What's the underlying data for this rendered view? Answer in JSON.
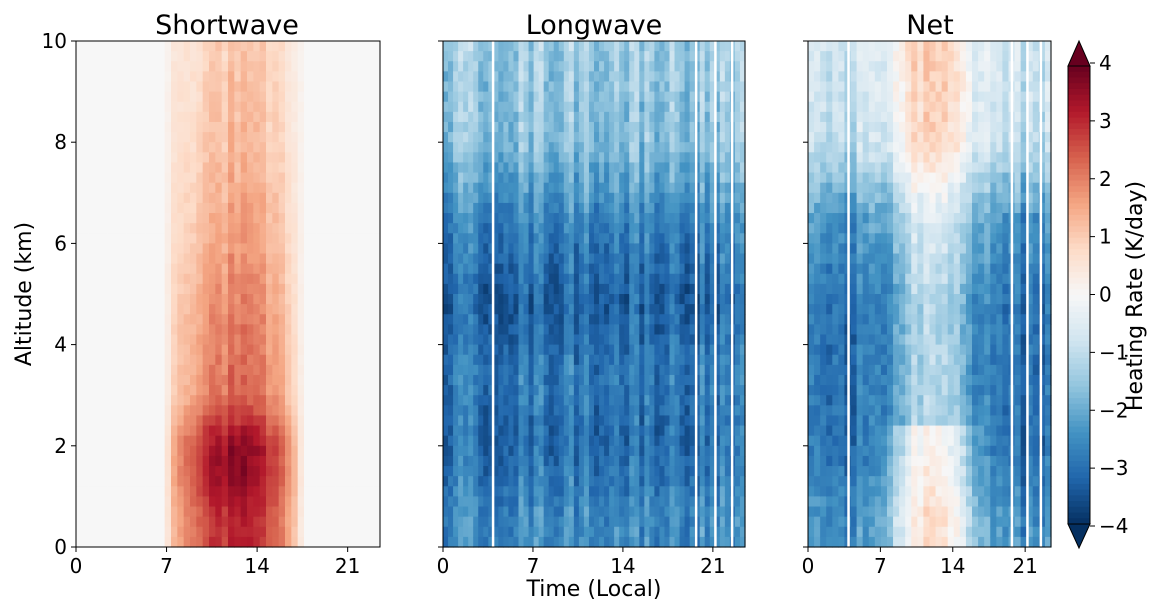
{
  "chart_data": [
    {
      "type": "heatmap",
      "title": "Shortwave",
      "xlabel": "",
      "ylabel": "Altitude (km)",
      "xlim": [
        0,
        23.5
      ],
      "ylim": [
        0,
        10
      ],
      "xticks": [
        0,
        7,
        14,
        21
      ],
      "xtick_labels": [
        "0",
        "7",
        "14",
        "21"
      ],
      "yticks": [
        0,
        2,
        4,
        6,
        8,
        10
      ],
      "ytick_labels": [
        "0",
        "2",
        "4",
        "6",
        "8",
        "10"
      ],
      "daylight_hours": [
        6.7,
        17.7
      ],
      "peak": {
        "time": 12,
        "altitude": 1.8,
        "value": 3.8
      },
      "values_by_altitude": [
        {
          "altitude": 0.5,
          "value": 3.0
        },
        {
          "altitude": 1.5,
          "value": 3.5
        },
        {
          "altitude": 2.0,
          "value": 3.5
        },
        {
          "altitude": 3.0,
          "value": 2.2
        },
        {
          "altitude": 4.5,
          "value": 2.0
        },
        {
          "altitude": 6.0,
          "value": 1.6
        },
        {
          "altitude": 8.0,
          "value": 1.2
        },
        {
          "altitude": 10.0,
          "value": 1.0
        }
      ]
    },
    {
      "type": "heatmap",
      "title": "Longwave",
      "xlabel": "Time (Local)",
      "ylabel": "",
      "xlim": [
        0,
        23.5
      ],
      "ylim": [
        0,
        10
      ],
      "xticks": [
        0,
        7,
        14,
        21
      ],
      "xtick_labels": [
        "0",
        "7",
        "14",
        "21"
      ],
      "values_by_altitude": [
        {
          "altitude": 0.5,
          "value": -2.5
        },
        {
          "altitude": 2.0,
          "value": -3.0
        },
        {
          "altitude": 3.5,
          "value": -2.8
        },
        {
          "altitude": 4.8,
          "value": -3.2
        },
        {
          "altitude": 6.5,
          "value": -2.6
        },
        {
          "altitude": 8.0,
          "value": -1.6
        },
        {
          "altitude": 10.0,
          "value": -1.4
        }
      ]
    },
    {
      "type": "heatmap",
      "title": "Net",
      "xlabel": "",
      "ylabel": "",
      "xlim": [
        0,
        23.5
      ],
      "ylim": [
        0,
        10
      ],
      "xticks": [
        0,
        7,
        14,
        21
      ],
      "xtick_labels": [
        "0",
        "7",
        "14",
        "21"
      ],
      "warm_region": {
        "time": 12,
        "altitude": 1.0,
        "value": 0.6
      },
      "values_by_altitude": [
        {
          "altitude": 0.5,
          "value": -2.5
        },
        {
          "altitude": 2.0,
          "value": -3.0
        },
        {
          "altitude": 4.8,
          "value": -3.0
        },
        {
          "altitude": 6.5,
          "value": -2.4
        },
        {
          "altitude": 8.0,
          "value": -1.0
        },
        {
          "altitude": 10.0,
          "value": -0.8
        }
      ]
    }
  ],
  "colorbar": {
    "label": "Heating Rate (K/day)",
    "min": -4,
    "max": 4,
    "ticks": [
      "−4",
      "−3",
      "−2",
      "−1",
      "0",
      "1",
      "2",
      "3",
      "4"
    ],
    "extend": "both",
    "colormap": "RdBu_r",
    "colors": [
      "#053061",
      "#2166ac",
      "#4393c3",
      "#92c5de",
      "#d1e5f0",
      "#f7f7f7",
      "#fddbc7",
      "#f4a582",
      "#d6604d",
      "#b2182b",
      "#67001f"
    ]
  }
}
